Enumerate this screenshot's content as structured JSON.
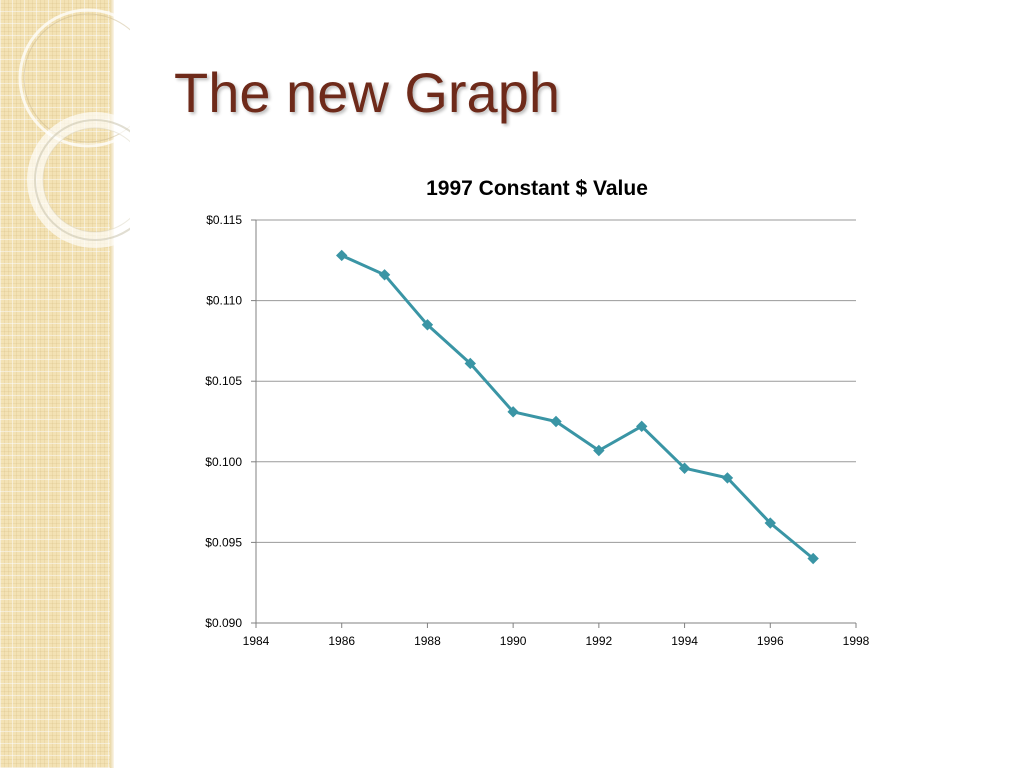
{
  "slide": {
    "title": "The new Graph"
  },
  "colors": {
    "title": "#6e2a1a",
    "series_line": "#3a95a5",
    "gridline": "#9a9a9a",
    "side_panel": "#f3e2b4"
  },
  "decoration": {
    "icon": "ring-ornament-icon"
  },
  "chart_data": {
    "type": "line",
    "title": "1997 Constant $ Value",
    "xlabel": "",
    "ylabel": "",
    "xlim": [
      1984,
      1998
    ],
    "ylim": [
      0.09,
      0.115
    ],
    "x_ticks": [
      "1984",
      "1986",
      "1988",
      "1990",
      "1992",
      "1994",
      "1996",
      "1998"
    ],
    "y_ticks": [
      "$0.090",
      "$0.095",
      "$0.100",
      "$0.105",
      "$0.110",
      "$0.115"
    ],
    "grid": "horizontal",
    "marker": "diamond",
    "series": [
      {
        "x": [
          1986,
          1987,
          1988,
          1989,
          1990,
          1991,
          1992,
          1993,
          1994,
          1995,
          1996,
          1997
        ],
        "values": [
          0.1128,
          0.1116,
          0.1085,
          0.1061,
          0.1031,
          0.1025,
          0.1007,
          0.1022,
          0.0996,
          0.099,
          0.0962,
          0.094
        ]
      }
    ]
  }
}
